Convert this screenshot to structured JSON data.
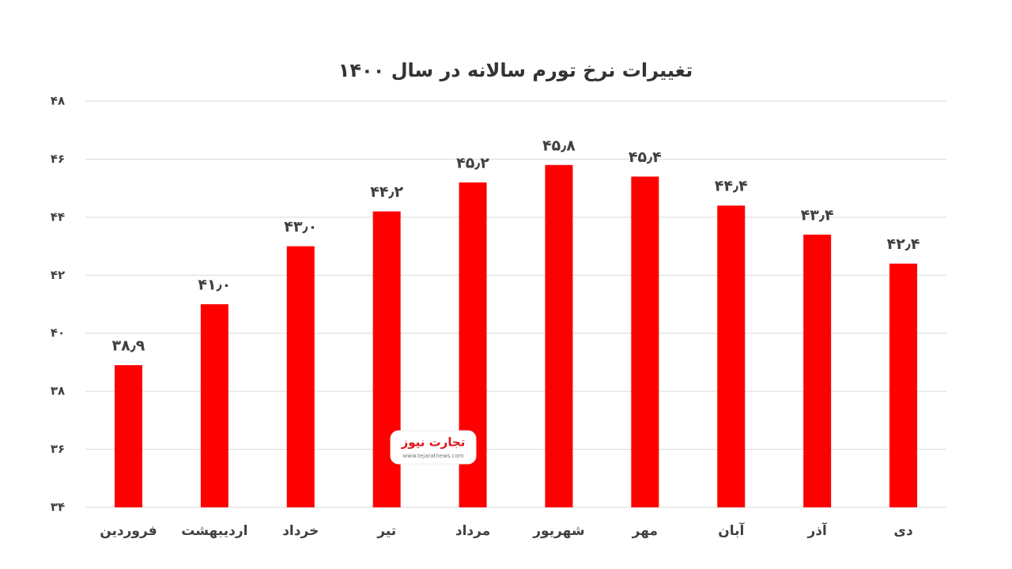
{
  "chart_data": {
    "type": "bar",
    "title": "تغییرات نرخ تورم سالانه در سال ۱۴۰۰",
    "categories": [
      "فروردین",
      "اردیبهشت",
      "خرداد",
      "تیر",
      "مرداد",
      "شهریور",
      "مهر",
      "آبان",
      "آذر",
      "دی"
    ],
    "values": [
      38.9,
      41.0,
      43.0,
      44.2,
      45.2,
      45.8,
      45.4,
      44.4,
      43.4,
      42.4
    ],
    "value_labels": [
      "۳۸٫۹",
      "۴۱٫۰",
      "۴۳٫۰",
      "۴۴٫۲",
      "۴۵٫۲",
      "۴۵٫۸",
      "۴۵٫۴",
      "۴۴٫۴",
      "۴۳٫۴",
      "۴۲٫۴"
    ],
    "color": "#ff0000",
    "ylim": [
      34,
      48
    ],
    "yticks": [
      {
        "value": 34,
        "label": "۳۴"
      },
      {
        "value": 36,
        "label": "۳۶"
      },
      {
        "value": 38,
        "label": "۳۸"
      },
      {
        "value": 40,
        "label": "۴۰"
      },
      {
        "value": 42,
        "label": "۴۲"
      },
      {
        "value": 44,
        "label": "۴۴"
      },
      {
        "value": 46,
        "label": "۴۶"
      },
      {
        "value": 48,
        "label": "۴۸"
      }
    ],
    "grid": true,
    "watermark": "تجارت نیوز",
    "watermark_url": "www.tejaratnews.com"
  }
}
